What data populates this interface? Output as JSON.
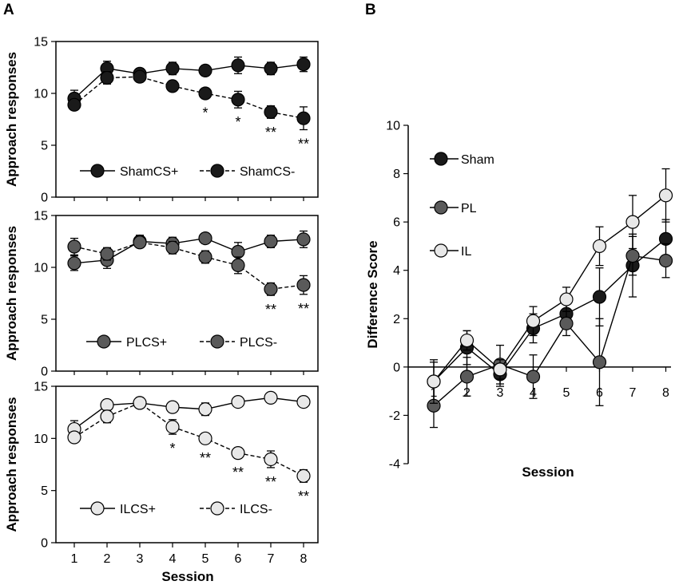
{
  "figure": {
    "panel_a_label": "A",
    "panel_b_label": "B"
  },
  "colors": {
    "sham": "#1a1a1a",
    "pl": "#5a5a5a",
    "il": "#e8e8e8",
    "outline": "#000000"
  },
  "chart_data": [
    {
      "id": "sham",
      "type": "line",
      "panel": "A",
      "title": "",
      "xlabel": "",
      "ylabel": "Approach responses",
      "x": [
        1,
        2,
        3,
        4,
        5,
        6,
        7,
        8
      ],
      "ylim": [
        0,
        15
      ],
      "yticks": [
        0,
        5,
        10,
        15
      ],
      "series": [
        {
          "name": "ShamCS+",
          "style": "solid",
          "marker_color": "#1a1a1a",
          "values": [
            9.5,
            12.4,
            11.9,
            12.4,
            12.2,
            12.7,
            12.4,
            12.8
          ],
          "errors": [
            0.8,
            0.7,
            0.5,
            0.6,
            0.5,
            0.8,
            0.6,
            0.7
          ]
        },
        {
          "name": "ShamCS-",
          "style": "dashed",
          "marker_color": "#1a1a1a",
          "values": [
            8.9,
            11.5,
            11.6,
            10.7,
            10.0,
            9.4,
            8.2,
            7.6
          ],
          "errors": [
            0.5,
            0.6,
            0.5,
            0.5,
            0.5,
            0.8,
            0.6,
            1.1
          ]
        }
      ],
      "annotations": [
        {
          "x": 5,
          "text": "*"
        },
        {
          "x": 6,
          "text": "*"
        },
        {
          "x": 7,
          "text": "**"
        },
        {
          "x": 8,
          "text": "**"
        }
      ]
    },
    {
      "id": "pl",
      "type": "line",
      "panel": "A",
      "title": "",
      "xlabel": "",
      "ylabel": "Approach responses",
      "x": [
        1,
        2,
        3,
        4,
        5,
        6,
        7,
        8
      ],
      "ylim": [
        0,
        15
      ],
      "yticks": [
        0,
        5,
        10,
        15
      ],
      "series": [
        {
          "name": "PLCS+",
          "style": "solid",
          "marker_color": "#5a5a5a",
          "values": [
            10.4,
            10.7,
            12.5,
            12.3,
            12.8,
            11.5,
            12.5,
            12.7
          ],
          "errors": [
            0.7,
            0.8,
            0.6,
            0.6,
            0.5,
            0.9,
            0.6,
            0.8
          ]
        },
        {
          "name": "PLCS-",
          "style": "dashed",
          "marker_color": "#5a5a5a",
          "values": [
            12.0,
            11.3,
            12.4,
            11.9,
            11.0,
            10.2,
            7.9,
            8.3
          ],
          "errors": [
            0.8,
            0.6,
            0.5,
            0.6,
            0.6,
            0.8,
            0.6,
            0.9
          ]
        }
      ],
      "annotations": [
        {
          "x": 7,
          "text": "**"
        },
        {
          "x": 8,
          "text": "**"
        }
      ]
    },
    {
      "id": "il",
      "type": "line",
      "panel": "A",
      "title": "",
      "xlabel": "Session",
      "ylabel": "Approach responses",
      "x": [
        1,
        2,
        3,
        4,
        5,
        6,
        7,
        8
      ],
      "ylim": [
        0,
        15
      ],
      "yticks": [
        0,
        5,
        10,
        15
      ],
      "series": [
        {
          "name": "ILCS+",
          "style": "solid",
          "marker_color": "#e8e8e8",
          "values": [
            10.9,
            13.2,
            13.4,
            13.0,
            12.8,
            13.5,
            13.9,
            13.5
          ],
          "errors": [
            0.8,
            0.5,
            0.4,
            0.5,
            0.6,
            0.4,
            0.4,
            0.5
          ]
        },
        {
          "name": "ILCS-",
          "style": "dashed",
          "marker_color": "#e8e8e8",
          "values": [
            10.1,
            12.1,
            13.4,
            11.1,
            10.0,
            8.6,
            8.0,
            6.4
          ],
          "errors": [
            0.5,
            0.6,
            0.4,
            0.7,
            0.5,
            0.5,
            0.8,
            0.6
          ]
        }
      ],
      "annotations": [
        {
          "x": 4,
          "text": "*"
        },
        {
          "x": 5,
          "text": "**"
        },
        {
          "x": 6,
          "text": "**"
        },
        {
          "x": 7,
          "text": "**"
        },
        {
          "x": 8,
          "text": "**"
        }
      ]
    },
    {
      "id": "diff",
      "type": "line",
      "panel": "B",
      "title": "",
      "xlabel": "Session",
      "ylabel": "Difference Score",
      "x": [
        1,
        2,
        3,
        4,
        5,
        6,
        7,
        8
      ],
      "ylim": [
        -4,
        10
      ],
      "yticks": [
        -4,
        -2,
        0,
        2,
        4,
        6,
        8,
        10
      ],
      "series": [
        {
          "name": "Sham",
          "style": "solid",
          "marker_color": "#1a1a1a",
          "values": [
            -0.6,
            0.8,
            -0.3,
            1.6,
            2.2,
            2.9,
            4.2,
            5.3
          ],
          "errors": [
            0.8,
            0.7,
            0.5,
            0.6,
            0.5,
            1.2,
            1.3,
            0.8
          ]
        },
        {
          "name": "PL",
          "style": "solid",
          "marker_color": "#5a5a5a",
          "values": [
            -1.6,
            -0.4,
            0.1,
            -0.4,
            1.8,
            0.2,
            4.6,
            4.4
          ],
          "errors": [
            0.9,
            0.8,
            0.8,
            0.9,
            0.5,
            1.8,
            0.8,
            0.7
          ]
        },
        {
          "name": "IL",
          "style": "solid",
          "marker_color": "#e8e8e8",
          "values": [
            -0.6,
            1.1,
            -0.1,
            1.9,
            2.8,
            5.0,
            6.0,
            7.1
          ],
          "errors": [
            0.9,
            0.4,
            0.4,
            0.6,
            0.5,
            0.8,
            1.1,
            1.1
          ]
        }
      ]
    }
  ]
}
